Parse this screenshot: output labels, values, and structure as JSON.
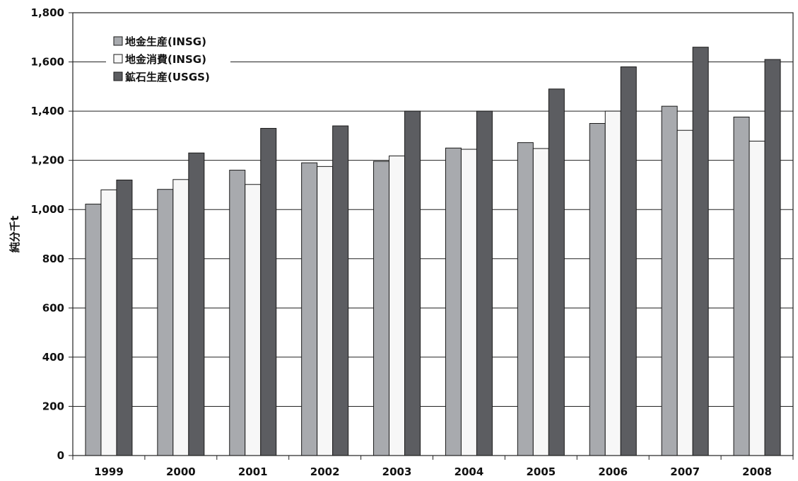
{
  "chart_data": {
    "type": "bar",
    "title": "",
    "xlabel": "",
    "ylabel": "純分千t",
    "categories": [
      "1999",
      "2000",
      "2001",
      "2002",
      "2003",
      "2004",
      "2005",
      "2006",
      "2007",
      "2008"
    ],
    "ylim": [
      0,
      1800
    ],
    "y_ticks": [
      "0",
      "200",
      "400",
      "600",
      "800",
      "1,000",
      "1,200",
      "1,400",
      "1,600",
      "1,800"
    ],
    "grid": "horizontal",
    "legend_position": "top-left",
    "series": [
      {
        "name": "地金生産(INSG)",
        "color": "#a8aaae",
        "values": [
          1022,
          1082,
          1160,
          1190,
          1196,
          1250,
          1272,
          1350,
          1420,
          1376
        ]
      },
      {
        "name": "地金消費(INSG)",
        "color": "#f7f7f7",
        "values": [
          1080,
          1122,
          1102,
          1175,
          1218,
          1245,
          1248,
          1400,
          1322,
          1278
        ]
      },
      {
        "name": "鉱石生産(USGS)",
        "color": "#5c5d61",
        "values": [
          1120,
          1230,
          1330,
          1340,
          1400,
          1400,
          1490,
          1580,
          1660,
          1610
        ]
      }
    ]
  }
}
